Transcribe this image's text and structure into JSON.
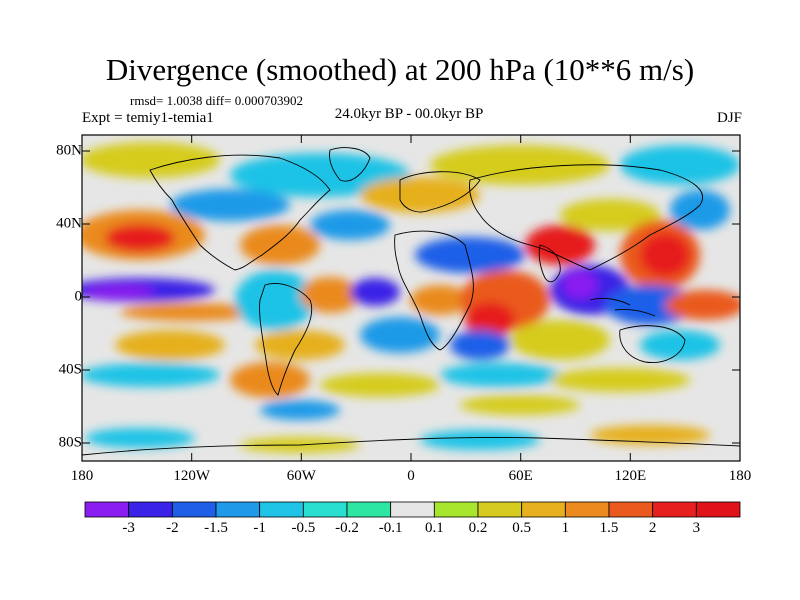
{
  "title": "Divergence (smoothed) at 200 hPa (10**6 m/s)",
  "stats": "rmsd= 1.0038 diff= 0.000703902",
  "experiment": "Expt = temiy1-temia1",
  "period": "24.0kyr BP - 00.0kyr BP",
  "season": "DJF",
  "lat_labels": [
    "80N",
    "40N",
    "0",
    "40S",
    "80S"
  ],
  "lon_labels": [
    "180",
    "120W",
    "60W",
    "0",
    "60E",
    "120E",
    "180"
  ],
  "colorbar": {
    "labels": [
      "-3",
      "-2",
      "-1.5",
      "-1",
      "-0.5",
      "-0.2",
      "-0.1",
      "0.1",
      "0.2",
      "0.5",
      "1",
      "1.5",
      "2",
      "3"
    ],
    "colors": [
      "#8a1ef0",
      "#3a22e6",
      "#1f5fe8",
      "#1e9ae8",
      "#1fc3e6",
      "#29dfcf",
      "#2ee6a4",
      "#e6e6e6",
      "#a8e62e",
      "#d6cc1f",
      "#e6b01f",
      "#ea8a1f",
      "#ea5a1e",
      "#e61f1f",
      "#e0121a"
    ]
  }
}
